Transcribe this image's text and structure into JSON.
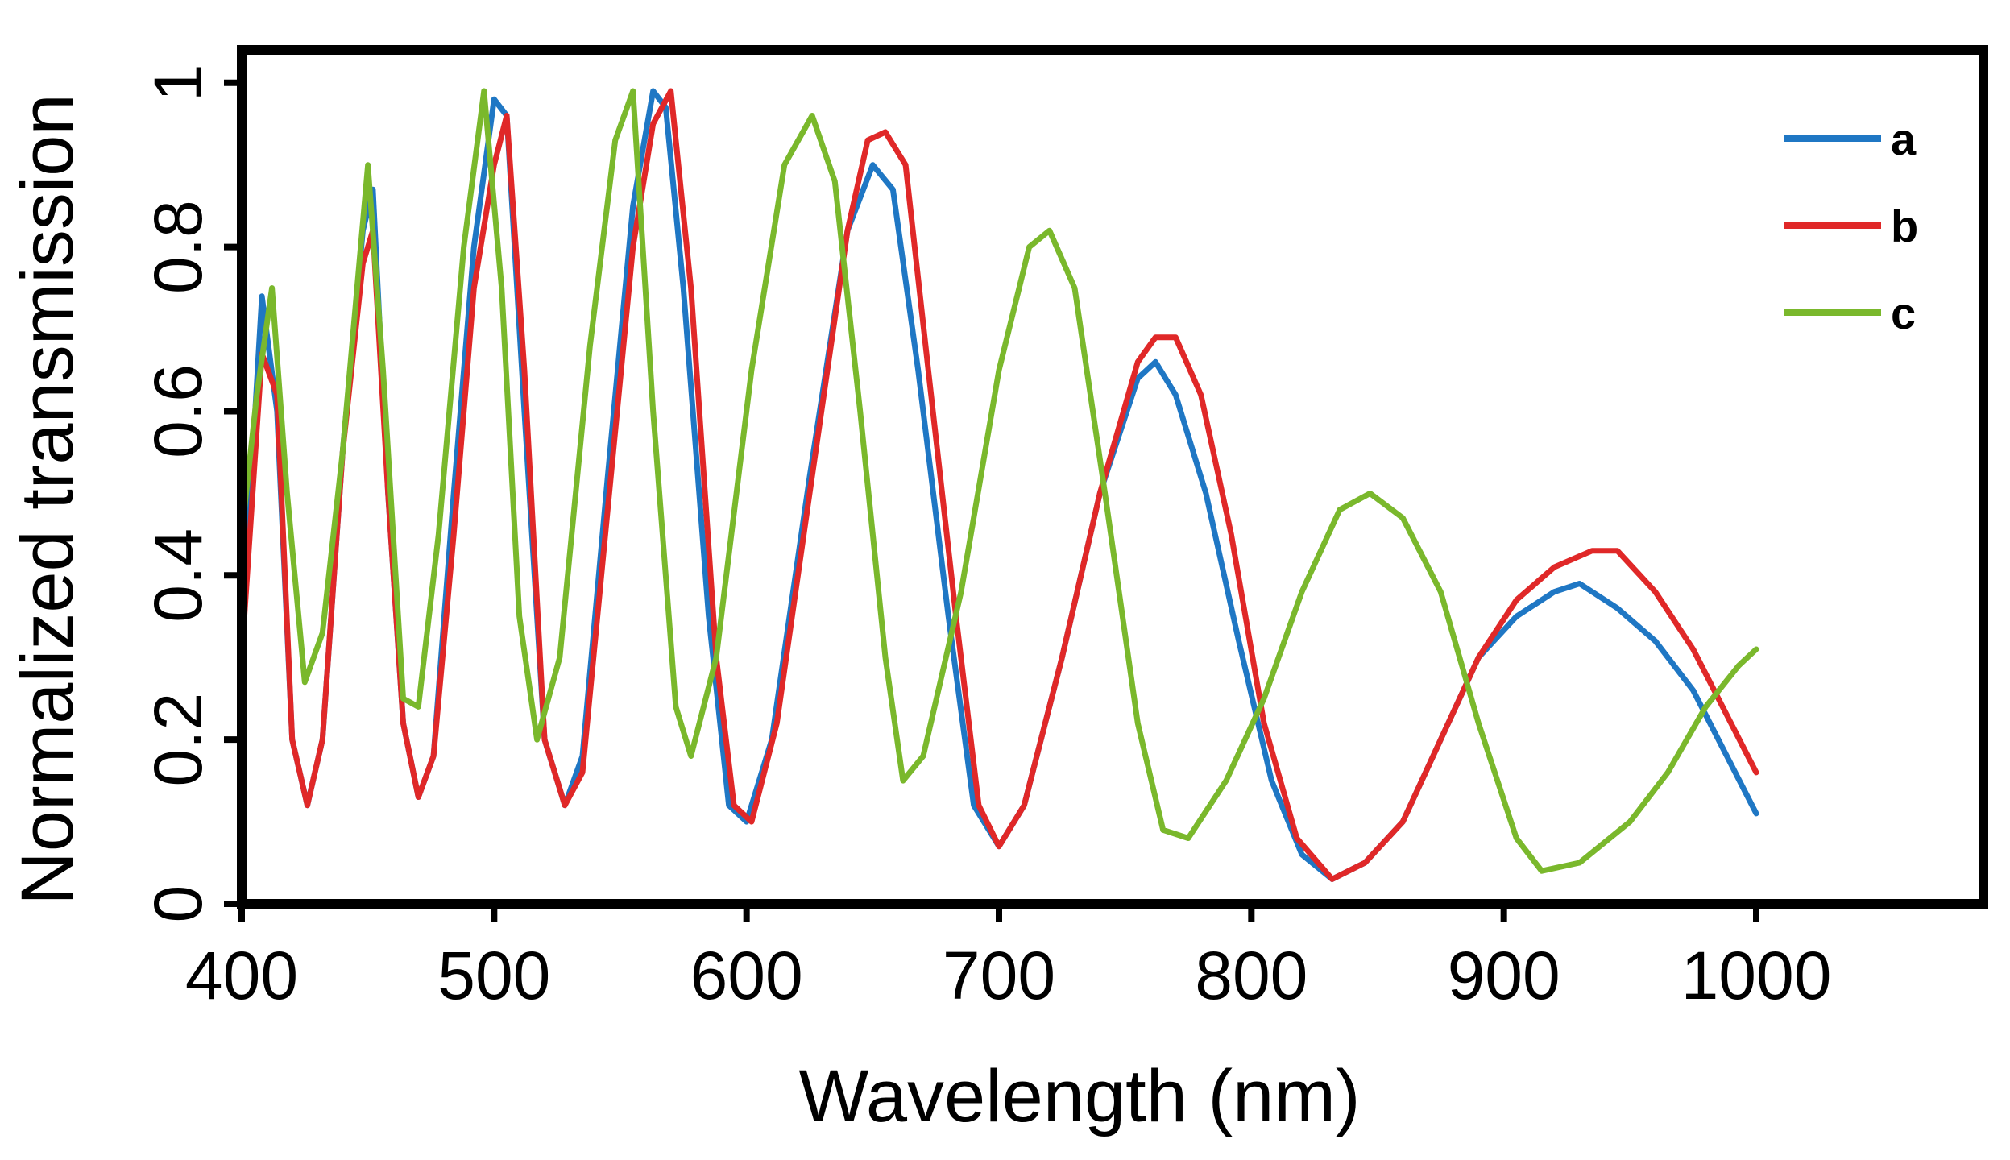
{
  "chart_data": {
    "type": "line",
    "title": "",
    "xlabel": "Wavelength (nm)",
    "ylabel": "Normalized transmission",
    "xlim": [
      400,
      1090
    ],
    "ylim": [
      0,
      1.04
    ],
    "xticks": [
      {
        "value": 400,
        "label": "400"
      },
      {
        "value": 500,
        "label": "500"
      },
      {
        "value": 600,
        "label": "600"
      },
      {
        "value": 700,
        "label": "700"
      },
      {
        "value": 800,
        "label": "800"
      },
      {
        "value": 900,
        "label": "900"
      },
      {
        "value": 1000,
        "label": "1000"
      }
    ],
    "yticks": [
      {
        "value": 0,
        "label": "0"
      },
      {
        "value": 0.2,
        "label": "0.2"
      },
      {
        "value": 0.4,
        "label": "0.4"
      },
      {
        "value": 0.6,
        "label": "0.6"
      },
      {
        "value": 0.8,
        "label": "0.8"
      },
      {
        "value": 1,
        "label": "1"
      }
    ],
    "grid": false,
    "legend_position": "top-right",
    "series": [
      {
        "name": "a",
        "color": "#1f77c4",
        "points": [
          [
            400,
            0.32
          ],
          [
            408,
            0.74
          ],
          [
            414,
            0.6
          ],
          [
            420,
            0.2
          ],
          [
            426,
            0.12
          ],
          [
            432,
            0.2
          ],
          [
            440,
            0.55
          ],
          [
            448,
            0.82
          ],
          [
            452,
            0.87
          ],
          [
            458,
            0.5
          ],
          [
            464,
            0.22
          ],
          [
            470,
            0.13
          ],
          [
            476,
            0.18
          ],
          [
            484,
            0.5
          ],
          [
            492,
            0.8
          ],
          [
            500,
            0.98
          ],
          [
            505,
            0.96
          ],
          [
            512,
            0.6
          ],
          [
            520,
            0.2
          ],
          [
            528,
            0.12
          ],
          [
            535,
            0.18
          ],
          [
            545,
            0.52
          ],
          [
            555,
            0.85
          ],
          [
            563,
            0.99
          ],
          [
            568,
            0.97
          ],
          [
            575,
            0.75
          ],
          [
            585,
            0.35
          ],
          [
            593,
            0.12
          ],
          [
            600,
            0.1
          ],
          [
            610,
            0.2
          ],
          [
            625,
            0.52
          ],
          [
            640,
            0.82
          ],
          [
            650,
            0.9
          ],
          [
            658,
            0.87
          ],
          [
            668,
            0.65
          ],
          [
            680,
            0.35
          ],
          [
            690,
            0.12
          ],
          [
            700,
            0.07
          ],
          [
            710,
            0.12
          ],
          [
            725,
            0.3
          ],
          [
            740,
            0.5
          ],
          [
            755,
            0.64
          ],
          [
            762,
            0.66
          ],
          [
            770,
            0.62
          ],
          [
            782,
            0.5
          ],
          [
            795,
            0.32
          ],
          [
            808,
            0.15
          ],
          [
            820,
            0.06
          ],
          [
            832,
            0.03
          ],
          [
            845,
            0.05
          ],
          [
            860,
            0.1
          ],
          [
            875,
            0.2
          ],
          [
            890,
            0.3
          ],
          [
            905,
            0.35
          ],
          [
            920,
            0.38
          ],
          [
            930,
            0.39
          ],
          [
            945,
            0.36
          ],
          [
            960,
            0.32
          ],
          [
            975,
            0.26
          ],
          [
            990,
            0.17
          ],
          [
            1000,
            0.11
          ]
        ]
      },
      {
        "name": "b",
        "color": "#e02828",
        "points": [
          [
            400,
            0.3
          ],
          [
            408,
            0.67
          ],
          [
            414,
            0.62
          ],
          [
            420,
            0.2
          ],
          [
            426,
            0.12
          ],
          [
            432,
            0.2
          ],
          [
            440,
            0.55
          ],
          [
            448,
            0.78
          ],
          [
            452,
            0.82
          ],
          [
            458,
            0.5
          ],
          [
            464,
            0.22
          ],
          [
            470,
            0.13
          ],
          [
            476,
            0.18
          ],
          [
            484,
            0.45
          ],
          [
            492,
            0.75
          ],
          [
            500,
            0.9
          ],
          [
            505,
            0.96
          ],
          [
            512,
            0.65
          ],
          [
            520,
            0.2
          ],
          [
            528,
            0.12
          ],
          [
            535,
            0.16
          ],
          [
            545,
            0.48
          ],
          [
            555,
            0.8
          ],
          [
            563,
            0.95
          ],
          [
            570,
            0.99
          ],
          [
            578,
            0.75
          ],
          [
            588,
            0.3
          ],
          [
            595,
            0.12
          ],
          [
            602,
            0.1
          ],
          [
            612,
            0.22
          ],
          [
            625,
            0.5
          ],
          [
            640,
            0.82
          ],
          [
            648,
            0.93
          ],
          [
            655,
            0.94
          ],
          [
            663,
            0.9
          ],
          [
            672,
            0.65
          ],
          [
            683,
            0.35
          ],
          [
            692,
            0.12
          ],
          [
            700,
            0.07
          ],
          [
            710,
            0.12
          ],
          [
            725,
            0.3
          ],
          [
            740,
            0.5
          ],
          [
            755,
            0.66
          ],
          [
            762,
            0.69
          ],
          [
            770,
            0.69
          ],
          [
            780,
            0.62
          ],
          [
            792,
            0.45
          ],
          [
            805,
            0.22
          ],
          [
            818,
            0.08
          ],
          [
            832,
            0.03
          ],
          [
            845,
            0.05
          ],
          [
            860,
            0.1
          ],
          [
            875,
            0.2
          ],
          [
            890,
            0.3
          ],
          [
            905,
            0.37
          ],
          [
            920,
            0.41
          ],
          [
            935,
            0.43
          ],
          [
            945,
            0.43
          ],
          [
            960,
            0.38
          ],
          [
            975,
            0.31
          ],
          [
            990,
            0.22
          ],
          [
            1000,
            0.16
          ]
        ]
      },
      {
        "name": "c",
        "color": "#7ab82c",
        "points": [
          [
            400,
            0.45
          ],
          [
            406,
            0.62
          ],
          [
            412,
            0.75
          ],
          [
            418,
            0.5
          ],
          [
            425,
            0.27
          ],
          [
            432,
            0.33
          ],
          [
            440,
            0.55
          ],
          [
            450,
            0.9
          ],
          [
            456,
            0.65
          ],
          [
            464,
            0.25
          ],
          [
            470,
            0.24
          ],
          [
            478,
            0.45
          ],
          [
            488,
            0.8
          ],
          [
            496,
            0.99
          ],
          [
            503,
            0.75
          ],
          [
            510,
            0.35
          ],
          [
            517,
            0.2
          ],
          [
            526,
            0.3
          ],
          [
            538,
            0.68
          ],
          [
            548,
            0.93
          ],
          [
            555,
            0.99
          ],
          [
            563,
            0.6
          ],
          [
            572,
            0.24
          ],
          [
            578,
            0.18
          ],
          [
            588,
            0.3
          ],
          [
            602,
            0.65
          ],
          [
            615,
            0.9
          ],
          [
            626,
            0.96
          ],
          [
            635,
            0.88
          ],
          [
            645,
            0.6
          ],
          [
            655,
            0.3
          ],
          [
            662,
            0.15
          ],
          [
            670,
            0.18
          ],
          [
            685,
            0.38
          ],
          [
            700,
            0.65
          ],
          [
            712,
            0.8
          ],
          [
            720,
            0.82
          ],
          [
            730,
            0.75
          ],
          [
            742,
            0.5
          ],
          [
            755,
            0.22
          ],
          [
            765,
            0.09
          ],
          [
            775,
            0.08
          ],
          [
            790,
            0.15
          ],
          [
            805,
            0.25
          ],
          [
            820,
            0.38
          ],
          [
            835,
            0.48
          ],
          [
            847,
            0.5
          ],
          [
            860,
            0.47
          ],
          [
            875,
            0.38
          ],
          [
            890,
            0.22
          ],
          [
            905,
            0.08
          ],
          [
            915,
            0.04
          ],
          [
            930,
            0.05
          ],
          [
            950,
            0.1
          ],
          [
            965,
            0.16
          ],
          [
            980,
            0.24
          ],
          [
            993,
            0.29
          ],
          [
            1000,
            0.31
          ]
        ]
      }
    ]
  }
}
